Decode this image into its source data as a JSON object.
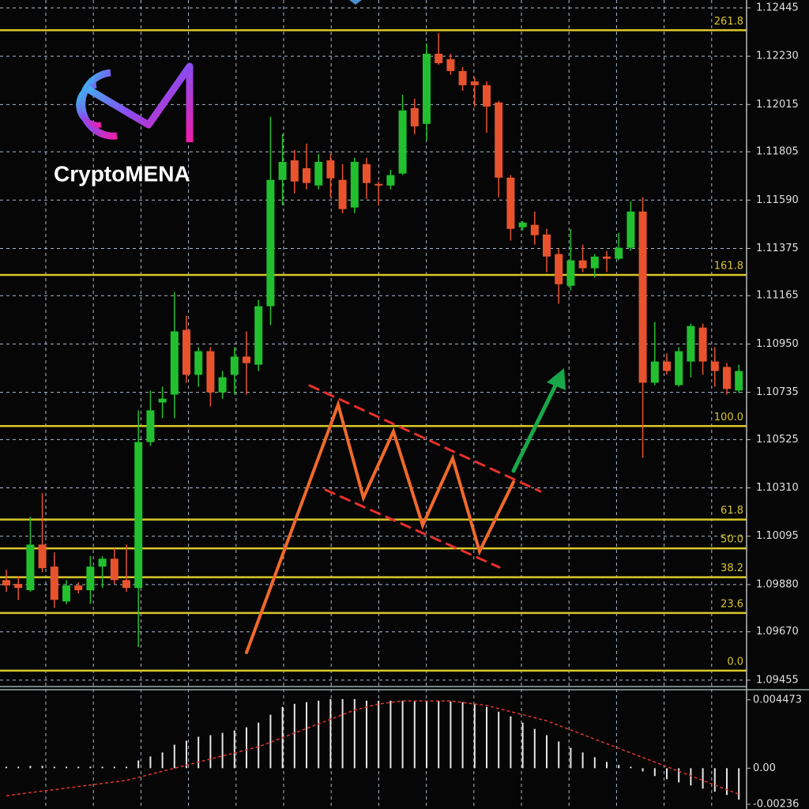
{
  "chart_data": {
    "type": "candlestick",
    "brand": "CryptoMENA",
    "ylim": [
      1.0943,
      1.1248
    ],
    "yticks": [
      1.12445,
      {
        "value": 1.1223,
        "label": "1.12230"
      },
      1.12015,
      1.11805,
      {
        "value": 1.1159,
        "label": "1.11590"
      },
      1.11375,
      1.11165,
      {
        "value": 1.1095,
        "label": "1.10950"
      },
      1.10735,
      1.10525,
      {
        "value": 1.1031,
        "label": "1.10310"
      },
      1.10095,
      {
        "value": 1.0988,
        "label": "1.09880"
      },
      {
        "value": 1.0967,
        "label": "1.09670"
      },
      1.09455
    ],
    "grid": true,
    "up_color": "#22c02f",
    "down_color": "#e8532e",
    "open": [
      1.099,
      1.09883,
      1.09855,
      1.10058,
      1.0996,
      1.09805,
      1.09876,
      1.09855,
      1.0996,
      1.09995,
      1.099,
      1.09865,
      1.10514,
      1.1069,
      1.10725,
      1.11013,
      1.10813,
      1.10918,
      1.10735,
      1.10813,
      1.10894,
      1.10858,
      1.11118,
      1.1168,
      1.11767,
      1.11732,
      1.11655,
      1.11767,
      1.1168,
      1.11557,
      1.1175,
      1.11662,
      1.11655,
      1.11708,
      1.11999,
      1.11929,
      1.12241,
      1.12217,
      1.12164,
      1.12118,
      1.12101,
      1.12024,
      1.1169,
      1.11469,
      1.1148,
      1.11437,
      1.1135,
      1.11209,
      1.11322,
      1.11287,
      1.11339,
      1.11329,
      1.11378,
      1.11539,
      1.10778,
      1.10872,
      1.10767,
      1.10872,
      1.11023,
      1.10872,
      1.10848,
      1.10743
    ],
    "high": [
      1.09946,
      1.09918,
      1.10181,
      1.10286,
      1.10023,
      1.099,
      1.0989,
      1.10006,
      1.10006,
      1.10041,
      1.10058,
      1.10655,
      1.10743,
      1.1076,
      1.11181,
      1.11076,
      1.10936,
      1.10936,
      1.1083,
      1.10936,
      1.11006,
      1.11146,
      1.11961,
      1.11883,
      1.11813,
      1.11841,
      1.11796,
      1.11796,
      1.1175,
      1.11778,
      1.11778,
      1.11673,
      1.11725,
      1.12059,
      1.12041,
      1.12287,
      1.12333,
      1.12241,
      1.12182,
      1.12136,
      1.12118,
      1.12031,
      1.11701,
      1.11497,
      1.11539,
      1.11462,
      1.11374,
      1.11462,
      1.11392,
      1.1135,
      1.11364,
      1.11444,
      1.11585,
      1.11603,
      1.11048,
      1.10908,
      1.10936,
      1.11041,
      1.11041,
      1.10936,
      1.10865,
      1.10858
    ],
    "low": [
      1.09848,
      1.09812,
      1.09848,
      1.09935,
      1.09777,
      1.09793,
      1.09841,
      1.09795,
      1.09865,
      1.09883,
      1.09848,
      1.09602,
      1.10497,
      1.1062,
      1.1062,
      1.10778,
      1.1076,
      1.10672,
      1.10707,
      1.10725,
      1.10725,
      1.1083,
      1.11034,
      1.11567,
      1.1162,
      1.11638,
      1.11638,
      1.11603,
      1.11532,
      1.11532,
      1.11595,
      1.11567,
      1.11638,
      1.11701,
      1.11883,
      1.11855,
      1.12192,
      1.12147,
      1.12076,
      1.12006,
      1.1189,
      1.11603,
      1.1141,
      1.11455,
      1.11392,
      1.1127,
      1.11129,
      1.11188,
      1.1127,
      1.11245,
      1.1127,
      1.11322,
      1.11364,
      1.10444,
      1.10767,
      1.10813,
      1.1076,
      1.10802,
      1.10813,
      1.1076,
      1.10725,
      1.10732
    ],
    "close": [
      1.09876,
      1.09865,
      1.10058,
      1.09953,
      1.09812,
      1.09876,
      1.09855,
      1.0996,
      1.09995,
      1.099,
      1.09865,
      1.10514,
      1.10655,
      1.10707,
      1.11006,
      1.10813,
      1.10918,
      1.10735,
      1.10802,
      1.10894,
      1.10865,
      1.11118,
      1.1168,
      1.1176,
      1.11673,
      1.11666,
      1.1176,
      1.11687,
      1.1155,
      1.1176,
      1.11666,
      1.11655,
      1.11701,
      1.11989,
      1.11918,
      1.12241,
      1.12199,
      1.12164,
      1.12101,
      1.12101,
      1.12006,
      1.1169,
      1.11462,
      1.1149,
      1.11434,
      1.11339,
      1.11216,
      1.11322,
      1.11287,
      1.11339,
      1.11329,
      1.11378,
      1.11539,
      1.10778,
      1.10872,
      1.1083,
      1.10918,
      1.1103,
      1.10872,
      1.1083,
      1.1075,
      1.1083
    ],
    "fib": {
      "low": 1.09497,
      "high": 1.10585,
      "color": "#d8c62a",
      "levels": [
        {
          "value": 0,
          "label": "0.0"
        },
        23.6,
        38.2,
        {
          "value": 50,
          "label": "50.0"
        },
        61.8,
        {
          "value": 100,
          "label": "100.0"
        },
        161.8,
        261.8
      ]
    },
    "indicator": {
      "ylim": [
        -0.00267,
        0.00498
      ],
      "yticks": [
        0.004473,
        {
          "value": 0,
          "label": "0.00"
        },
        -0.00236
      ],
      "histogram": [
        0.0001,
        0.0001,
        0.00015,
        0.00015,
        0.0001,
        0.0001,
        0.0001,
        0.0001,
        0.0001,
        0.0001,
        0.0001,
        0.00051,
        0.00077,
        0.00103,
        0.00154,
        0.0018,
        0.00206,
        0.00216,
        0.00231,
        0.00247,
        0.00267,
        0.00298,
        0.0035,
        0.00401,
        0.00421,
        0.00432,
        0.00442,
        0.00452,
        0.00452,
        0.00452,
        0.00442,
        0.00442,
        0.00442,
        0.00442,
        0.00442,
        0.00442,
        0.00442,
        0.00437,
        0.00432,
        0.00421,
        0.00401,
        0.0037,
        0.00339,
        0.00298,
        0.00257,
        0.00216,
        0.00175,
        0.00134,
        0.00103,
        0.00072,
        0.00041,
        0.00021,
        0.0001,
        -0.00021,
        -0.00051,
        -0.00072,
        -0.00093,
        -0.00113,
        -0.00134,
        -0.00154,
        -0.00175,
        -0.00206
      ],
      "signal": [
        -0.0018,
        -0.0017,
        -0.0016,
        -0.0015,
        -0.0014,
        -0.0013,
        -0.0012,
        -0.0011,
        -0.001,
        -0.0009,
        -0.0008,
        -0.0006,
        -0.0004,
        -0.0002,
        0,
        0.0002,
        0.0004,
        0.0006,
        0.0008,
        0.001,
        0.0012,
        0.0014,
        0.0017,
        0.002,
        0.0023,
        0.0026,
        0.0029,
        0.0032,
        0.0035,
        0.0038,
        0.004,
        0.0042,
        0.0043,
        0.0044,
        0.0044,
        0.0044,
        0.0044,
        0.0044,
        0.0043,
        0.0042,
        0.0041,
        0.0039,
        0.0037,
        0.0035,
        0.0033,
        0.0031,
        0.0028,
        0.0025,
        0.0022,
        0.0019,
        0.0016,
        0.0013,
        0.001,
        0.0007,
        0.0004,
        0.0001,
        -0.0002,
        -0.0005,
        -0.0008,
        -0.0011,
        -0.0014,
        -0.0017
      ],
      "histogram_color": "#e6e6e6",
      "signal_color": "#e0352b"
    }
  }
}
